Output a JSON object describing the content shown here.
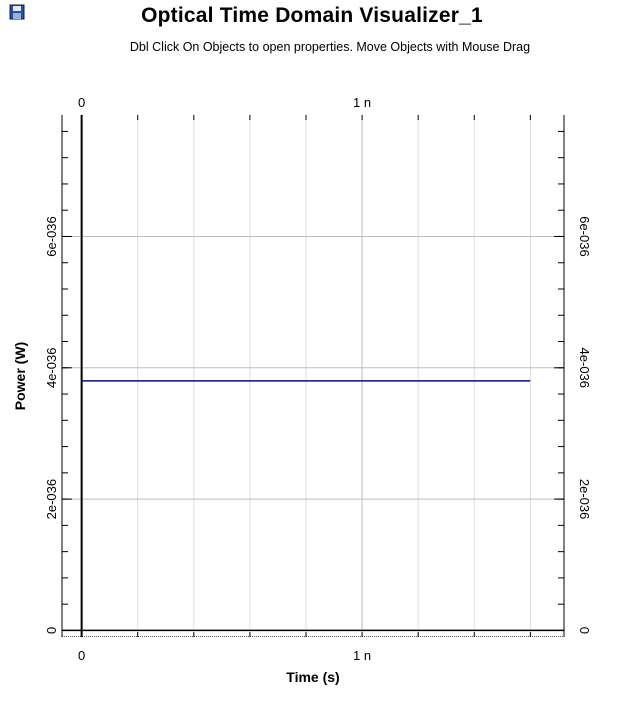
{
  "window": {
    "title": "Optical Time Domain Visualizer_1",
    "subtitle": "Dbl Click On Objects to open properties.  Move Objects with Mouse Drag",
    "icon": "disk-icon"
  },
  "chart_data": {
    "type": "line",
    "title": "Optical Time Domain Visualizer_1",
    "xlabel": "Time (s)",
    "ylabel": "Power (W)",
    "xlim": [
      -7e-11,
      1.72e-09
    ],
    "ylim": [
      -1e-37,
      7.85e-36
    ],
    "x_ticks": [
      {
        "value": 0,
        "label": "0"
      },
      {
        "value": 1e-09,
        "label": "1 n"
      }
    ],
    "y_ticks": [
      {
        "value": 0,
        "label": "0"
      },
      {
        "value": 2e-36,
        "label": "2e-036"
      },
      {
        "value": 4e-36,
        "label": "4e-036"
      },
      {
        "value": 6e-36,
        "label": "6e-036"
      }
    ],
    "x_minor_step": 2e-10,
    "y_minor_step": 4e-37,
    "grid": true,
    "series": [
      {
        "color": "#0a0a8c",
        "x": [
          0,
          1.6e-09
        ],
        "y": [
          3.8e-36,
          3.8e-36
        ]
      }
    ]
  }
}
